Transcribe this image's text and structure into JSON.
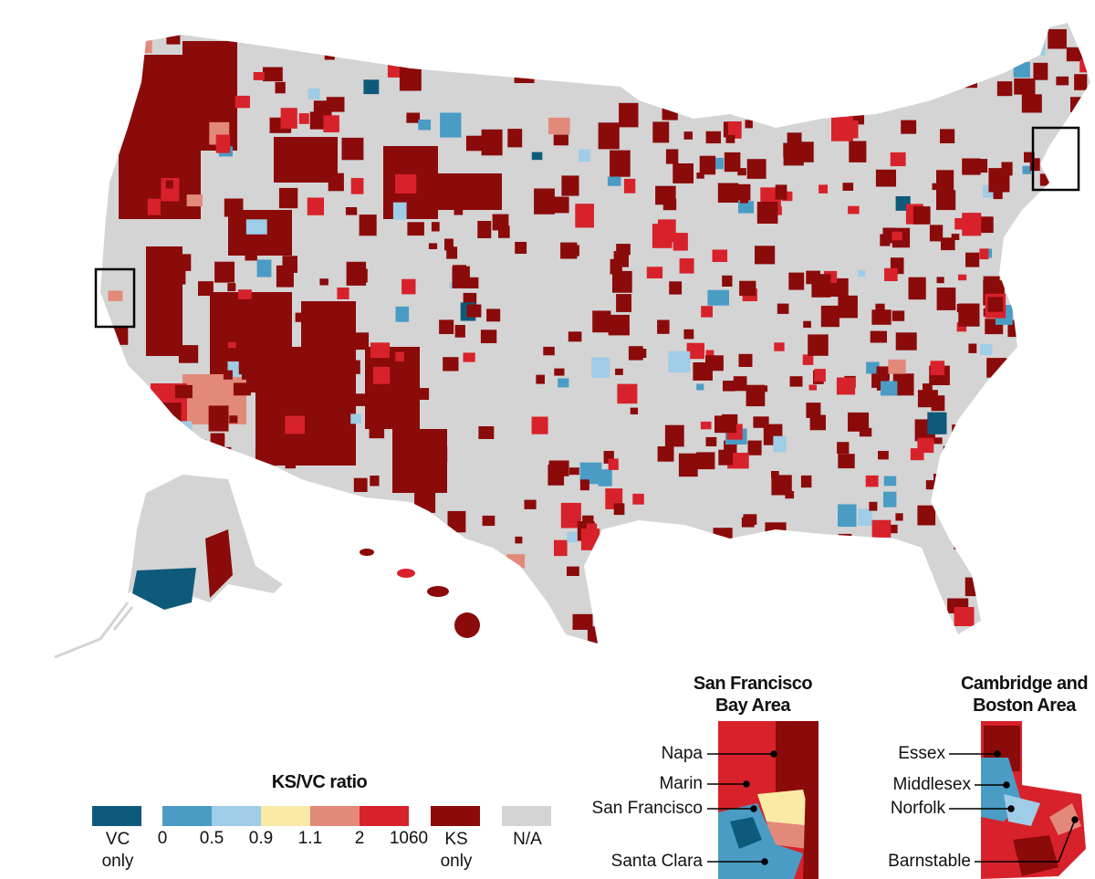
{
  "legend": {
    "title": "KS/VC ratio",
    "ends": [
      {
        "label": "VC only",
        "color": "#0e5a7a"
      },
      {
        "label": "KS only",
        "color": "#8b0a0a"
      },
      {
        "label": "N/A",
        "color": "#d4d4d4"
      }
    ],
    "classes": {
      "colors": [
        "#4a9cc5",
        "#9fcce6",
        "#fbe9a6",
        "#e3897a",
        "#d7222b"
      ],
      "breaks": [
        0,
        0.5,
        0.9,
        1.1,
        2,
        1060
      ]
    }
  },
  "insets": [
    {
      "title": "San Francisco Bay Area",
      "labels": [
        "Napa",
        "Marin",
        "San Francisco",
        "Santa Clara"
      ]
    },
    {
      "title": "Cambridge and Boston Area",
      "labels": [
        "Essex",
        "Middlesex",
        "Norfolk",
        "Barnstable"
      ]
    }
  ]
}
